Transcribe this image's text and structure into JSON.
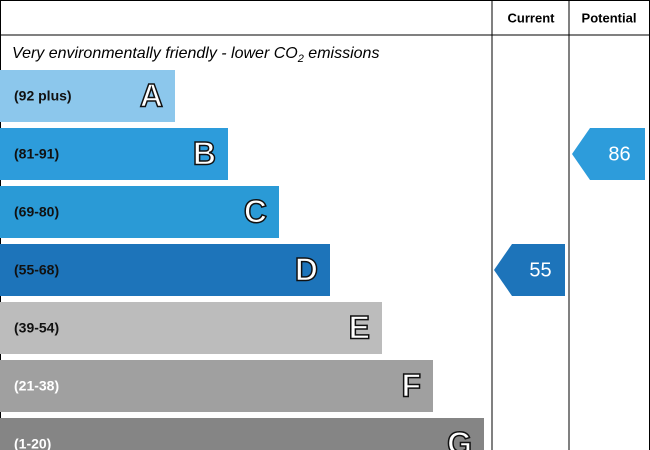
{
  "header": {
    "current": "Current",
    "potential": "Potential",
    "note": [
      "Very environmentally friendly - lower CO",
      "2",
      " emissions"
    ]
  },
  "bands": [
    {
      "range": "(92 plus)",
      "letter": "A",
      "color": "#8cc7ec"
    },
    {
      "range": "(81-91)",
      "letter": "B",
      "color": "#2d9cdb"
    },
    {
      "range": "(69-80)",
      "letter": "C",
      "color": "#2a9ad6"
    },
    {
      "range": "(55-68)",
      "letter": "D",
      "color": "#1d74ba"
    },
    {
      "range": "(39-54)",
      "letter": "E",
      "color": "#bcbcbc"
    },
    {
      "range": "(21-38)",
      "letter": "F",
      "color": "#a0a0a0"
    },
    {
      "range": "(1-20)",
      "letter": "G",
      "color": "#858585"
    }
  ],
  "ratings": {
    "current": 55,
    "potential": 86
  }
}
